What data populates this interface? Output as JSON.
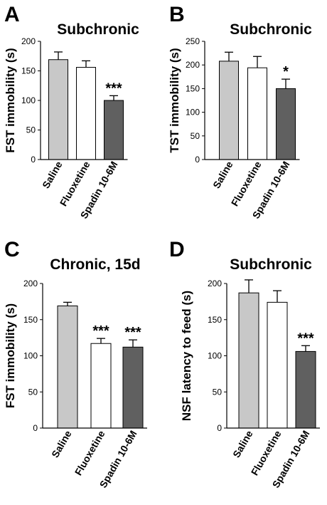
{
  "chart_data": [
    {
      "type": "bar",
      "panel": "A",
      "title": "Subchronic",
      "ylabel": "FST immobility (s)",
      "categories": [
        "Saline",
        "Fluoxetine",
        "Spadin 10-6M"
      ],
      "values": [
        169,
        156,
        100
      ],
      "errors": [
        13,
        11,
        8
      ],
      "significance": [
        "",
        "",
        "***"
      ],
      "yticks": [
        0,
        50,
        100,
        150,
        200
      ],
      "ylim": [
        0,
        200
      ],
      "bar_colors": [
        "#c8c8c8",
        "#ffffff",
        "#606060"
      ]
    },
    {
      "type": "bar",
      "panel": "B",
      "title": "Subchronic",
      "ylabel": "TST immobility (s)",
      "categories": [
        "Saline",
        "Fluoxetine",
        "Spadin 10-6M"
      ],
      "values": [
        208,
        194,
        150
      ],
      "errors": [
        19,
        24,
        20
      ],
      "significance": [
        "",
        "",
        "*"
      ],
      "yticks": [
        0,
        50,
        100,
        150,
        200,
        250
      ],
      "ylim": [
        0,
        250
      ],
      "bar_colors": [
        "#c8c8c8",
        "#ffffff",
        "#606060"
      ]
    },
    {
      "type": "bar",
      "panel": "C",
      "title": "Chronic, 15d",
      "ylabel": "FST immobility (s)",
      "categories": [
        "Saline",
        "Fluoxetine",
        "Spadin 10-6M"
      ],
      "values": [
        169,
        117,
        112
      ],
      "errors": [
        5,
        7,
        10
      ],
      "significance": [
        "",
        "***",
        "***"
      ],
      "yticks": [
        0,
        50,
        100,
        150,
        200
      ],
      "ylim": [
        0,
        200
      ],
      "bar_colors": [
        "#c8c8c8",
        "#ffffff",
        "#606060"
      ]
    },
    {
      "type": "bar",
      "panel": "D",
      "title": "Subchronic",
      "ylabel": "NSF latency to feed (s)",
      "categories": [
        "Saline",
        "Fluoxetine",
        "Spadin 10-6M"
      ],
      "values": [
        187,
        174,
        106
      ],
      "errors": [
        18,
        16,
        8
      ],
      "significance": [
        "",
        "",
        "***"
      ],
      "yticks": [
        0,
        50,
        100,
        150,
        200
      ],
      "ylim": [
        0,
        200
      ],
      "bar_colors": [
        "#c8c8c8",
        "#ffffff",
        "#606060"
      ]
    }
  ]
}
